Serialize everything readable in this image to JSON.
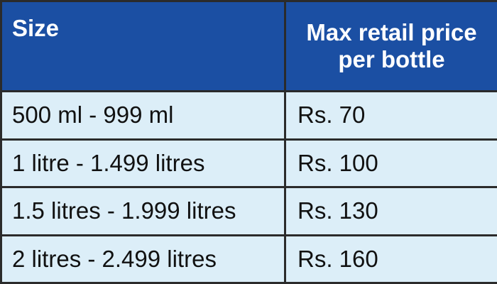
{
  "table": {
    "headers": {
      "size": "Size",
      "price_line1": "Max retail price",
      "price_line2": "per bottle"
    },
    "rows": [
      {
        "size": "500 ml - 999 ml",
        "price": "Rs. 70"
      },
      {
        "size": "1 litre - 1.499 litres",
        "price": "Rs. 100"
      },
      {
        "size": "1.5 litres - 1.999 litres",
        "price": "Rs. 130"
      },
      {
        "size": "2 litres - 2.499 litres",
        "price": "Rs. 160"
      }
    ]
  },
  "colors": {
    "header_bg": "#1b4fa3",
    "row_bg": "#dceef8",
    "border": "#2b2b2b"
  }
}
